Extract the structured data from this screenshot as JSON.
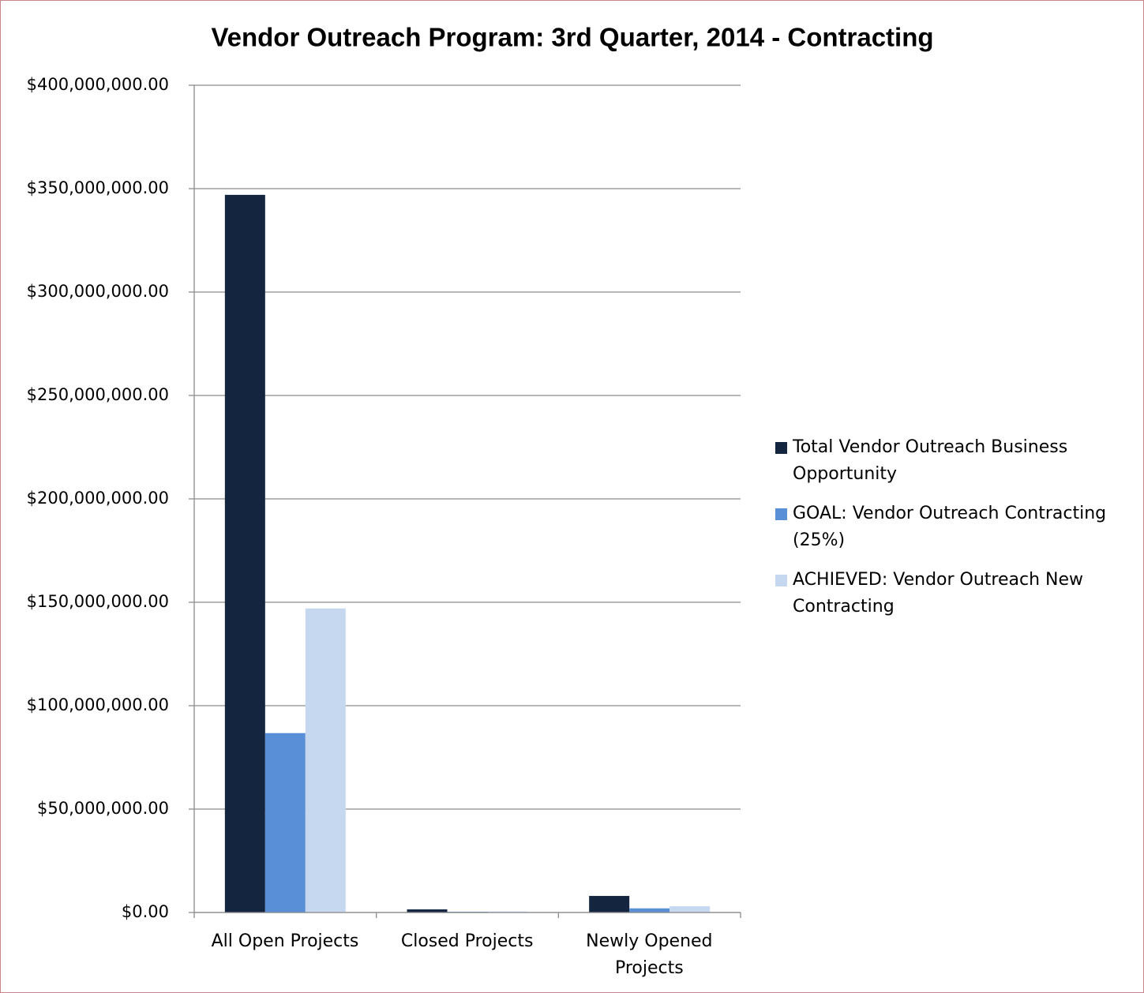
{
  "chart_data": {
    "type": "bar",
    "title": "Vendor Outreach Program: 3rd Quarter, 2014 - Contracting",
    "categories": [
      "All Open Projects",
      "Closed Projects",
      "Newly Opened Projects"
    ],
    "series": [
      {
        "name": "Total Vendor Outreach Business Opportunity",
        "color": "#14263f",
        "values": [
          347000000,
          1500000,
          8000000
        ]
      },
      {
        "name": "GOAL: Vendor Outreach Contracting (25%)",
        "color": "#588fd6",
        "values": [
          86750000,
          375000,
          2000000
        ]
      },
      {
        "name": "ACHIEVED: Vendor Outreach New Contracting",
        "color": "#c6d8f0",
        "values": [
          147000000,
          500000,
          3000000
        ]
      }
    ],
    "ylim": [
      0,
      400000000
    ],
    "yticks": [
      {
        "value": 0,
        "label": "$0.00"
      },
      {
        "value": 50000000,
        "label": "$50,000,000.00"
      },
      {
        "value": 100000000,
        "label": "$100,000,000.00"
      },
      {
        "value": 150000000,
        "label": "$150,000,000.00"
      },
      {
        "value": 200000000,
        "label": "$200,000,000.00"
      },
      {
        "value": 250000000,
        "label": "$250,000,000.00"
      },
      {
        "value": 300000000,
        "label": "$300,000,000.00"
      },
      {
        "value": 350000000,
        "label": "$350,000,000.00"
      },
      {
        "value": 400000000,
        "label": "$400,000,000.00"
      }
    ],
    "grid": true,
    "legend": "right"
  }
}
